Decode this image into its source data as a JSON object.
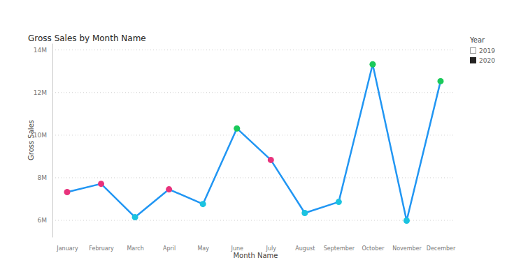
{
  "chart_data": {
    "type": "line",
    "title": "Gross Sales by Month Name",
    "x_label": "Month Name",
    "y_label": "Gross Sales",
    "categories": [
      "January",
      "February",
      "March",
      "April",
      "May",
      "June",
      "July",
      "August",
      "September",
      "October",
      "November",
      "December"
    ],
    "values": [
      7310000,
      7700000,
      6130000,
      7440000,
      6750000,
      10300000,
      8820000,
      6330000,
      6850000,
      13310000,
      5970000,
      12520000
    ],
    "color": "#2196f3",
    "colors": [
      "#e8327c",
      "#e8327c",
      "#1bc3e0",
      "#e8327c",
      "#1bc3e0",
      "#1ac95a",
      "#e8327c",
      "#1bc3e0",
      "#1bc3e0",
      "#1ac95a",
      "#1bc3e0",
      "#1ac95a"
    ],
    "marker": "circle",
    "ylim": [
      5200000,
      14300000
    ],
    "yticks": [
      {
        "value": 6000000,
        "label": "6M"
      },
      {
        "value": 8000000,
        "label": "8M"
      },
      {
        "value": 10000000,
        "label": "10M"
      },
      {
        "value": 12000000,
        "label": "12M"
      },
      {
        "value": 14000000,
        "label": "14M"
      }
    ],
    "grid": true,
    "year_filter": {
      "title": "Year",
      "options": [
        "2019",
        "2020"
      ],
      "selected": "2020"
    }
  }
}
